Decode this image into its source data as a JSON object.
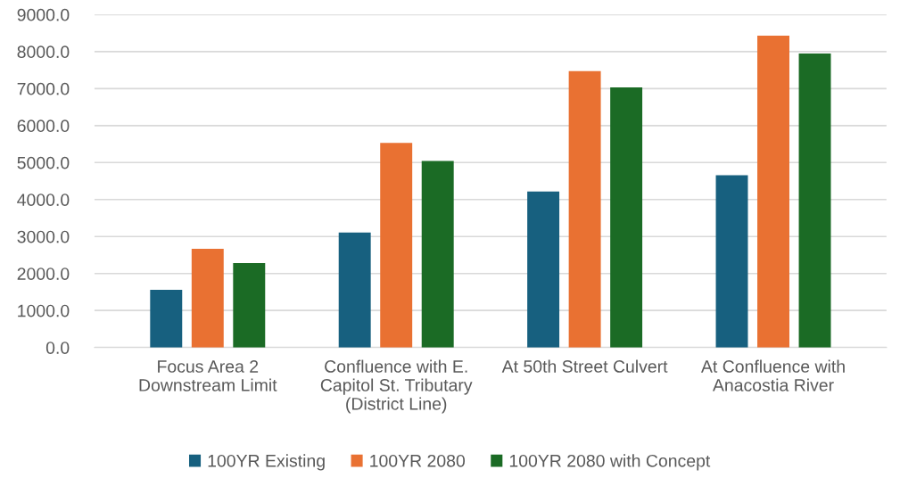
{
  "chart_data": {
    "type": "bar",
    "categories": [
      "Focus Area 2\nDownstream Limit",
      "Confluence with E.\nCapitol St. Tributary\n(District Line)",
      "At 50th Street Culvert",
      "At Confluence with\nAnacostia River"
    ],
    "series": [
      {
        "name": "100YR Existing",
        "color": "#17607f",
        "values": [
          1560,
          3110,
          4220,
          4660
        ]
      },
      {
        "name": "100YR 2080",
        "color": "#e97132",
        "values": [
          2670,
          5530,
          7470,
          8430
        ]
      },
      {
        "name": "100YR 2080 with Concept",
        "color": "#1b6b25",
        "values": [
          2280,
          5040,
          7030,
          7950
        ]
      }
    ],
    "ylim": [
      0,
      9000
    ],
    "yticks": [
      {
        "value": 0,
        "label": "0.0"
      },
      {
        "value": 1000,
        "label": "1000.0"
      },
      {
        "value": 2000,
        "label": "2000.0"
      },
      {
        "value": 3000,
        "label": "3000.0"
      },
      {
        "value": 4000,
        "label": "4000.0"
      },
      {
        "value": 5000,
        "label": "5000.0"
      },
      {
        "value": 6000,
        "label": "6000.0"
      },
      {
        "value": 7000,
        "label": "7000.0"
      },
      {
        "value": 8000,
        "label": "8000.0"
      },
      {
        "value": 9000,
        "label": "9000.0"
      }
    ],
    "grid": "y",
    "legend": "bottom"
  }
}
